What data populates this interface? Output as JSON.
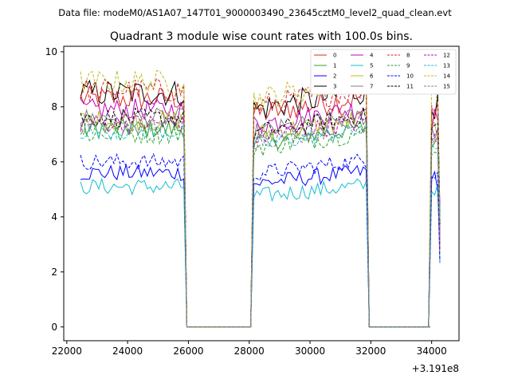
{
  "chart_data": {
    "type": "line",
    "suptitle": "Data file: modeM0/AS1A07_147T01_9000003490_23645cztM0_level2_quad_clean.evt",
    "title": "Quadrant 3 module wise count rates with 100.0s bins.",
    "xlabel": "",
    "ylabel": "",
    "x_offset_text": "+3.191e8",
    "xlim": [
      21900,
      34900
    ],
    "ylim": [
      -0.5,
      10.2
    ],
    "xticks": [
      22000,
      24000,
      26000,
      28000,
      30000,
      32000,
      34000
    ],
    "xtick_labels": [
      "22000",
      "24000",
      "26000",
      "28000",
      "30000",
      "32000",
      "34000"
    ],
    "yticks": [
      0,
      2,
      4,
      6,
      8,
      10
    ],
    "ytick_labels": [
      "0",
      "2",
      "4",
      "6",
      "8",
      "10"
    ],
    "grid": false,
    "legend_position": "top-right",
    "segments": [
      {
        "start": 22450,
        "end": 25850
      },
      {
        "start": 28150,
        "end": 31850
      },
      {
        "start": 34000,
        "end": 34250
      }
    ],
    "gaps": [
      {
        "start": 25950,
        "end": 28050
      },
      {
        "start": 31950,
        "end": 33950
      }
    ],
    "series": [
      {
        "name": "0",
        "color": "#d62728",
        "dash": "solid",
        "level": 8.3,
        "noise": 0.45
      },
      {
        "name": "1",
        "color": "#2ca02c",
        "dash": "solid",
        "level": 7.2,
        "noise": 0.35
      },
      {
        "name": "2",
        "color": "#0000ff",
        "dash": "solid",
        "level": 5.6,
        "noise": 0.3
      },
      {
        "name": "3",
        "color": "#000000",
        "dash": "solid",
        "level": 8.5,
        "noise": 0.5
      },
      {
        "name": "4",
        "color": "#c000c0",
        "dash": "solid",
        "level": 7.9,
        "noise": 0.4
      },
      {
        "name": "5",
        "color": "#17becf",
        "dash": "solid",
        "level": 5.1,
        "noise": 0.3
      },
      {
        "name": "6",
        "color": "#bcbd22",
        "dash": "solid",
        "level": 7.5,
        "noise": 0.4
      },
      {
        "name": "7",
        "color": "#7f7f7f",
        "dash": "solid",
        "level": 7.6,
        "noise": 0.35
      },
      {
        "name": "8",
        "color": "#d62728",
        "dash": "dashed",
        "level": 8.6,
        "noise": 0.45
      },
      {
        "name": "9",
        "color": "#2ca02c",
        "dash": "dashed",
        "level": 7.0,
        "noise": 0.35
      },
      {
        "name": "10",
        "color": "#0000ff",
        "dash": "dashed",
        "level": 6.0,
        "noise": 0.3
      },
      {
        "name": "11",
        "color": "#000000",
        "dash": "dashed",
        "level": 7.6,
        "noise": 0.35
      },
      {
        "name": "12",
        "color": "#c000c0",
        "dash": "dashed",
        "level": 7.4,
        "noise": 0.35
      },
      {
        "name": "13",
        "color": "#17becf",
        "dash": "dashed",
        "level": 7.1,
        "noise": 0.3
      },
      {
        "name": "14",
        "color": "#bcbd22",
        "dash": "dashed",
        "level": 8.9,
        "noise": 0.45
      },
      {
        "name": "15",
        "color": "#7f7f7f",
        "dash": "dashed",
        "level": 7.3,
        "noise": 0.35
      }
    ]
  }
}
